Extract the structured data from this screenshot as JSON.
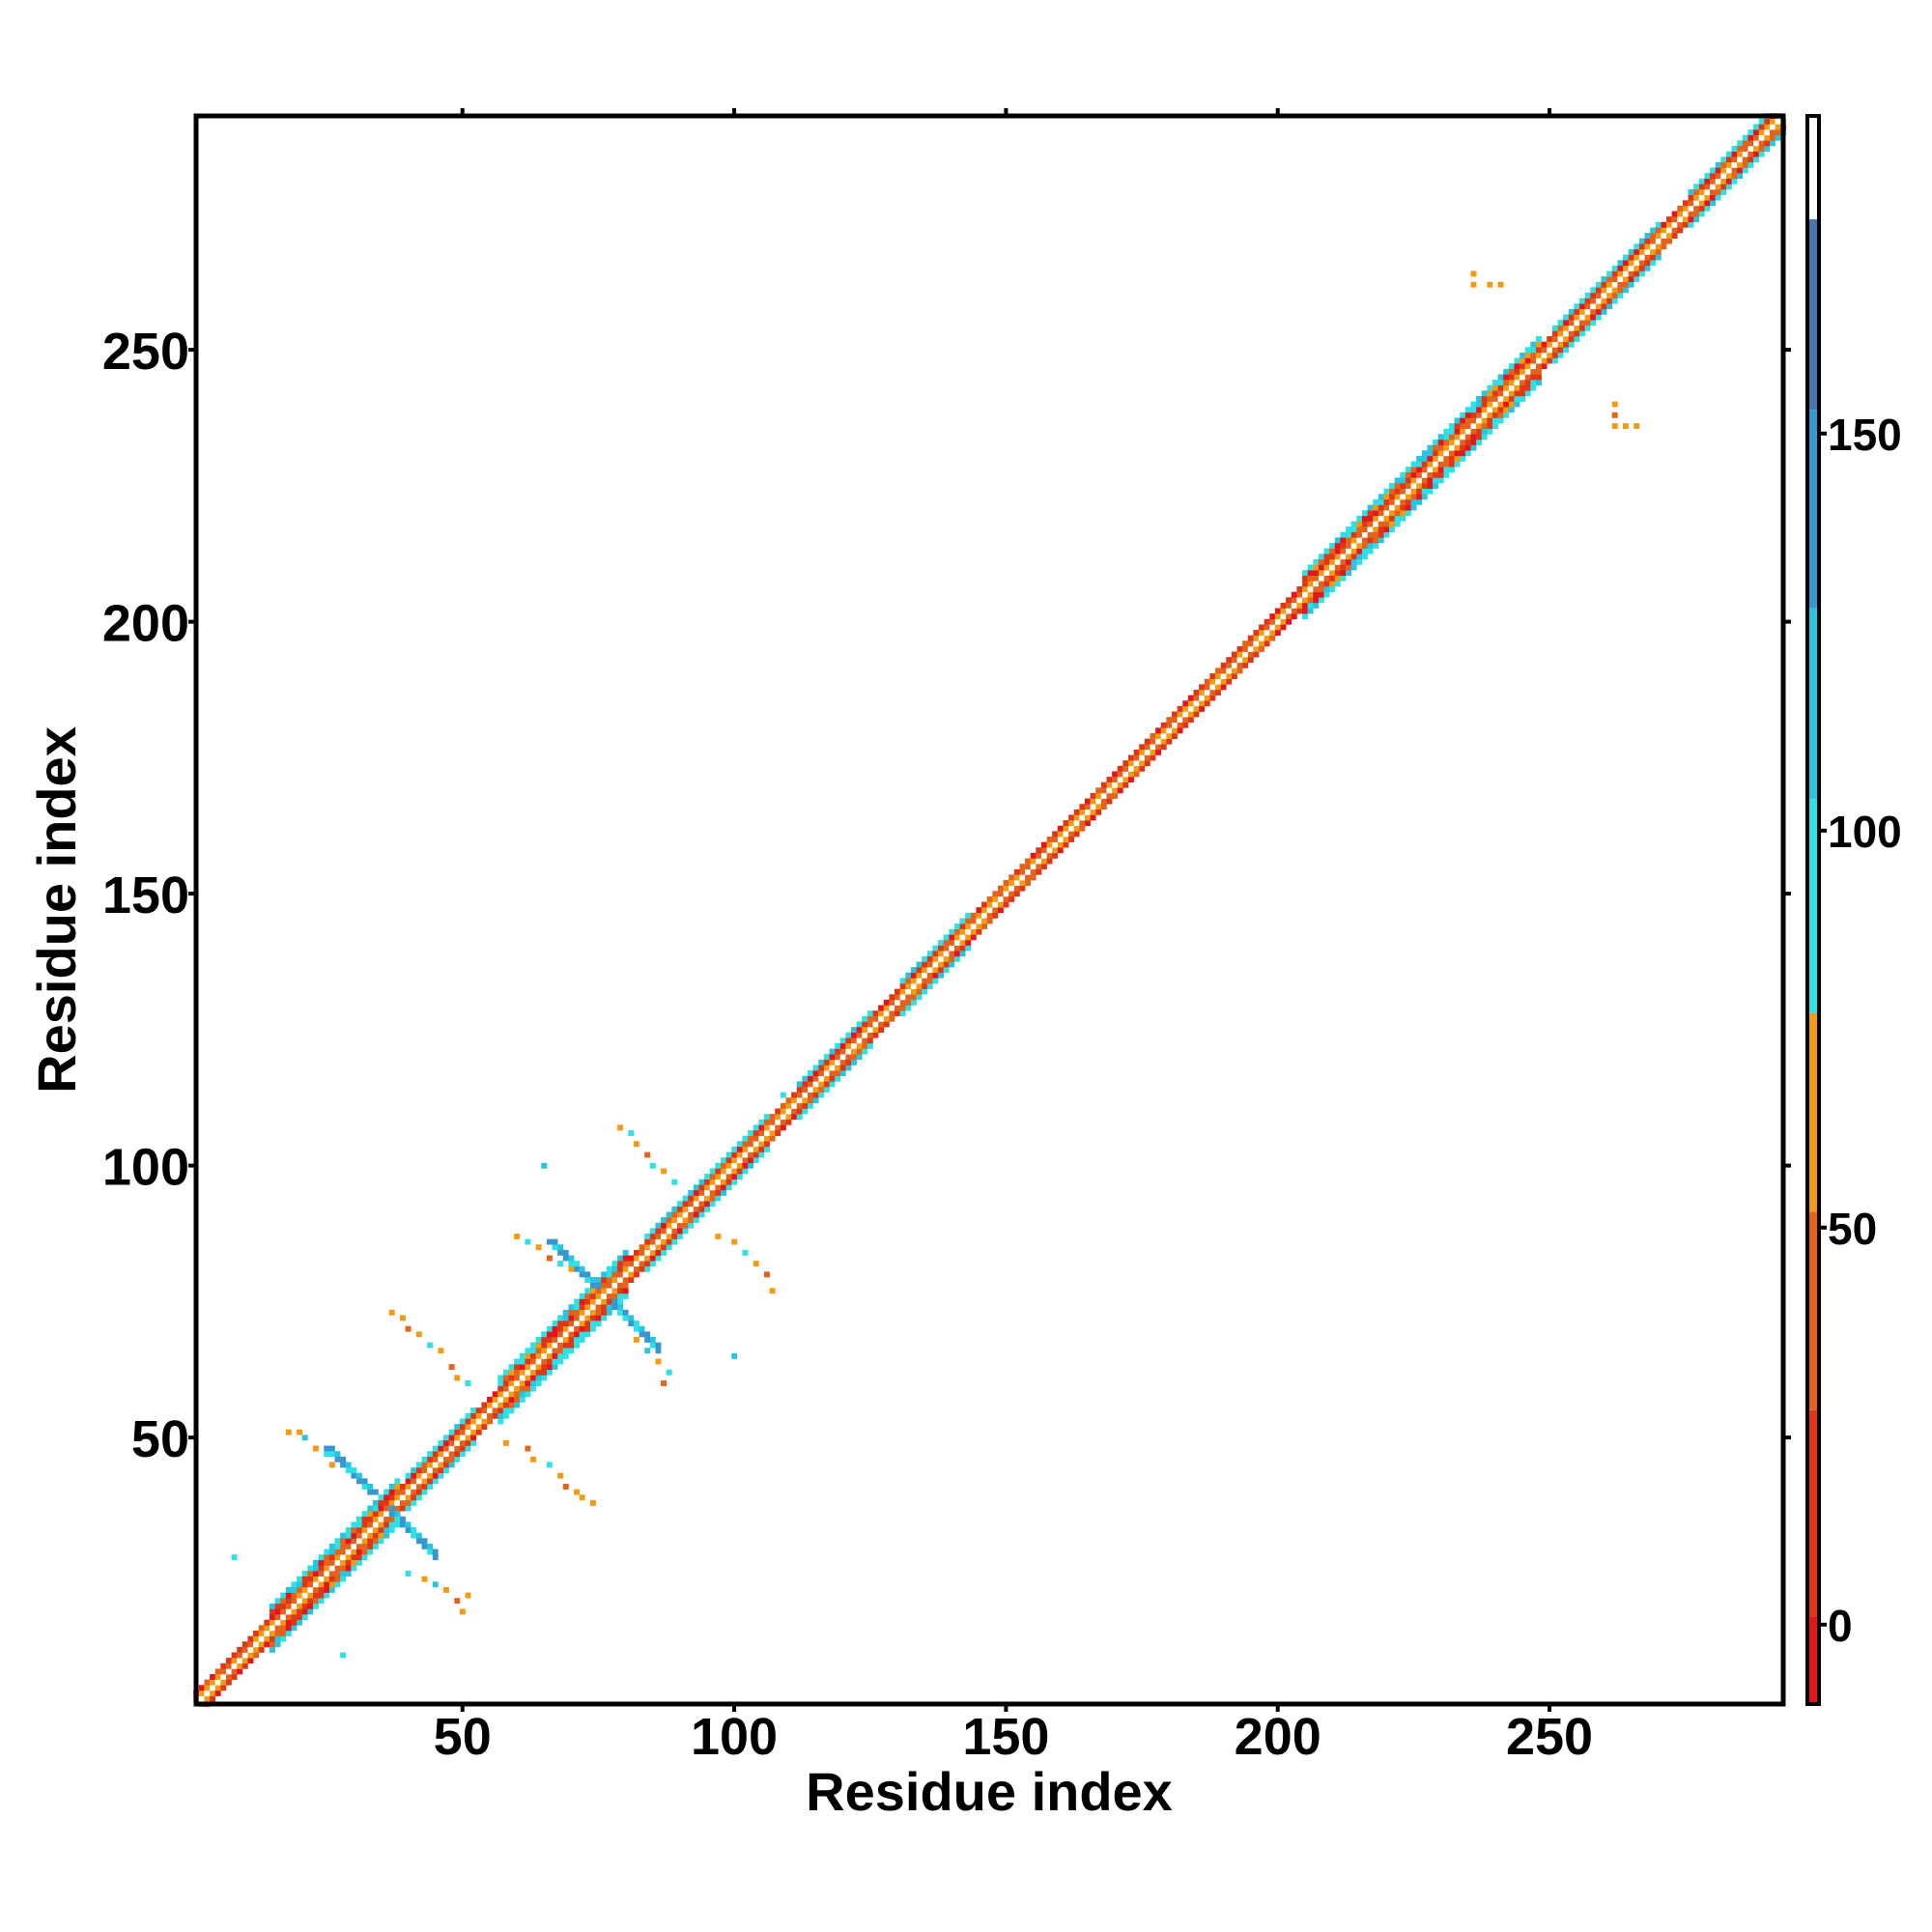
{
  "chart_data": {
    "type": "heatmap",
    "xlabel": "Residue index",
    "ylabel": "Residue index",
    "xlim": [
      1,
      293
    ],
    "ylim": [
      1,
      293
    ],
    "x_ticks": [
      50,
      100,
      150,
      200,
      250
    ],
    "y_ticks": [
      50,
      100,
      150,
      200,
      250
    ],
    "colorbar": {
      "range": [
        -10,
        190
      ],
      "ticks": [
        0,
        50,
        100,
        150
      ],
      "bands": [
        {
          "from": -10,
          "to": 1,
          "color": "#e4151d"
        },
        {
          "from": 1,
          "to": 27,
          "color": "#e03616"
        },
        {
          "from": 27,
          "to": 52,
          "color": "#e4631c"
        },
        {
          "from": 52,
          "to": 77,
          "color": "#f39b12"
        },
        {
          "from": 77,
          "to": 104,
          "color": "#2de1e6"
        },
        {
          "from": 104,
          "to": 128,
          "color": "#27c5e0"
        },
        {
          "from": 128,
          "to": 153,
          "color": "#3797d1"
        },
        {
          "from": 153,
          "to": 177,
          "color": "#4876b0"
        },
        {
          "from": 177,
          "to": 190,
          "color": "#ffffff"
        }
      ]
    },
    "diagonal_band": {
      "start": 1,
      "end": 293,
      "wide_segments": [
        {
          "from": 15,
          "to": 38,
          "halfwidth": 4
        },
        {
          "from": 40,
          "to": 52,
          "halfwidth": 3
        },
        {
          "from": 57,
          "to": 80,
          "halfwidth": 4
        },
        {
          "from": 84,
          "to": 106,
          "halfwidth": 3
        },
        {
          "from": 112,
          "to": 125,
          "halfwidth": 3
        },
        {
          "from": 131,
          "to": 143,
          "halfwidth": 3
        },
        {
          "from": 205,
          "to": 248,
          "halfwidth": 4
        },
        {
          "from": 251,
          "to": 270,
          "halfwidth": 3
        },
        {
          "from": 276,
          "to": 293,
          "halfwidth": 3
        }
      ]
    },
    "off_diagonal_contacts": [
      {
        "cx": 35,
        "cy": 38,
        "arms": 10,
        "color": "#3797d1"
      },
      {
        "cx": 76,
        "cy": 76,
        "arms": 10,
        "color": "#3797d1"
      }
    ],
    "scattered_contacts": [
      {
        "x": 18,
        "y": 51,
        "color": "#f39b12"
      },
      {
        "x": 20,
        "y": 51,
        "color": "#f39b12"
      },
      {
        "x": 21,
        "y": 50,
        "color": "#27c5e0"
      },
      {
        "x": 23,
        "y": 48,
        "color": "#f39b12"
      },
      {
        "x": 25,
        "y": 47,
        "color": "#2de1e6"
      },
      {
        "x": 26,
        "y": 45,
        "color": "#f39b12"
      },
      {
        "x": 40,
        "y": 25,
        "color": "#2de1e6"
      },
      {
        "x": 43,
        "y": 24,
        "color": "#f39b12"
      },
      {
        "x": 45,
        "y": 23,
        "color": "#27c5e0"
      },
      {
        "x": 47,
        "y": 22,
        "color": "#f39b12"
      },
      {
        "x": 49,
        "y": 20,
        "color": "#e4631c"
      },
      {
        "x": 51,
        "y": 21,
        "color": "#f39b12"
      },
      {
        "x": 50,
        "y": 18,
        "color": "#f39b12"
      },
      {
        "x": 8,
        "y": 28,
        "color": "#2de1e6"
      },
      {
        "x": 28,
        "y": 10,
        "color": "#2de1e6"
      },
      {
        "x": 37,
        "y": 73,
        "color": "#f39b12"
      },
      {
        "x": 39,
        "y": 72,
        "color": "#f39b12"
      },
      {
        "x": 40,
        "y": 70,
        "color": "#e4631c"
      },
      {
        "x": 42,
        "y": 69,
        "color": "#f39b12"
      },
      {
        "x": 44,
        "y": 67,
        "color": "#2de1e6"
      },
      {
        "x": 46,
        "y": 66,
        "color": "#f39b12"
      },
      {
        "x": 48,
        "y": 63,
        "color": "#e4631c"
      },
      {
        "x": 49,
        "y": 61,
        "color": "#f39b12"
      },
      {
        "x": 51,
        "y": 60,
        "color": "#2de1e6"
      },
      {
        "x": 58,
        "y": 49,
        "color": "#f39b12"
      },
      {
        "x": 62,
        "y": 48,
        "color": "#e4631c"
      },
      {
        "x": 63,
        "y": 46,
        "color": "#f39b12"
      },
      {
        "x": 66,
        "y": 45,
        "color": "#2de1e6"
      },
      {
        "x": 68,
        "y": 43,
        "color": "#f39b12"
      },
      {
        "x": 69,
        "y": 41,
        "color": "#e4631c"
      },
      {
        "x": 71,
        "y": 40,
        "color": "#f39b12"
      },
      {
        "x": 72,
        "y": 39,
        "color": "#f39b12"
      },
      {
        "x": 74,
        "y": 38,
        "color": "#f39b12"
      },
      {
        "x": 60,
        "y": 87,
        "color": "#f39b12"
      },
      {
        "x": 62,
        "y": 86,
        "color": "#2de1e6"
      },
      {
        "x": 64,
        "y": 85,
        "color": "#f39b12"
      },
      {
        "x": 66,
        "y": 83,
        "color": "#e4631c"
      },
      {
        "x": 68,
        "y": 82,
        "color": "#2de1e6"
      },
      {
        "x": 70,
        "y": 81,
        "color": "#f39b12"
      },
      {
        "x": 80,
        "y": 72,
        "color": "#2de1e6"
      },
      {
        "x": 82,
        "y": 68,
        "color": "#f39b12"
      },
      {
        "x": 84,
        "y": 66,
        "color": "#27c5e0"
      },
      {
        "x": 86,
        "y": 64,
        "color": "#f39b12"
      },
      {
        "x": 88,
        "y": 62,
        "color": "#2de1e6"
      },
      {
        "x": 87,
        "y": 60,
        "color": "#e4631c"
      },
      {
        "x": 79,
        "y": 107,
        "color": "#f39b12"
      },
      {
        "x": 81,
        "y": 106,
        "color": "#2de1e6"
      },
      {
        "x": 82,
        "y": 104,
        "color": "#f39b12"
      },
      {
        "x": 84,
        "y": 102,
        "color": "#e4631c"
      },
      {
        "x": 85,
        "y": 100,
        "color": "#2de1e6"
      },
      {
        "x": 87,
        "y": 99,
        "color": "#f39b12"
      },
      {
        "x": 89,
        "y": 97,
        "color": "#2de1e6"
      },
      {
        "x": 65,
        "y": 100,
        "color": "#27c5e0"
      },
      {
        "x": 97,
        "y": 87,
        "color": "#f39b12"
      },
      {
        "x": 100,
        "y": 86,
        "color": "#f39b12"
      },
      {
        "x": 102,
        "y": 84,
        "color": "#2de1e6"
      },
      {
        "x": 104,
        "y": 82,
        "color": "#f39b12"
      },
      {
        "x": 106,
        "y": 80,
        "color": "#e4631c"
      },
      {
        "x": 107,
        "y": 77,
        "color": "#f39b12"
      },
      {
        "x": 100,
        "y": 65,
        "color": "#27c5e0"
      },
      {
        "x": 109,
        "y": 113,
        "color": "#2de1e6"
      },
      {
        "x": 236,
        "y": 264,
        "color": "#f39b12"
      },
      {
        "x": 236,
        "y": 262,
        "color": "#f39b12"
      },
      {
        "x": 239,
        "y": 262,
        "color": "#f39b12"
      },
      {
        "x": 241,
        "y": 262,
        "color": "#f39b12"
      },
      {
        "x": 262,
        "y": 240,
        "color": "#f39b12"
      },
      {
        "x": 262,
        "y": 238,
        "color": "#e4631c"
      },
      {
        "x": 262,
        "y": 236,
        "color": "#f39b12"
      },
      {
        "x": 264,
        "y": 236,
        "color": "#f39b12"
      },
      {
        "x": 266,
        "y": 236,
        "color": "#f39b12"
      }
    ]
  }
}
